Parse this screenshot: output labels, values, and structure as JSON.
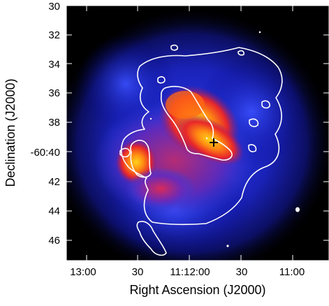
{
  "figure": {
    "xlabel": "Right Ascension (J2000)",
    "ylabel": "Declination (J2000)",
    "x_ticks": [
      "13:00",
      "30",
      "11:12:00",
      "30",
      "11:00"
    ],
    "y_ticks": [
      "30",
      "32",
      "34",
      "36",
      "38",
      "-60:40",
      "42",
      "44",
      "46"
    ],
    "colormap": [
      "#000000",
      "#0a0a7a",
      "#1d2cd8",
      "#3b4fff",
      "#8a2a9a",
      "#e02a2a",
      "#ff7a10",
      "#ffd21a"
    ],
    "contour_color": "#ffffff",
    "marker_symbol": "+"
  }
}
